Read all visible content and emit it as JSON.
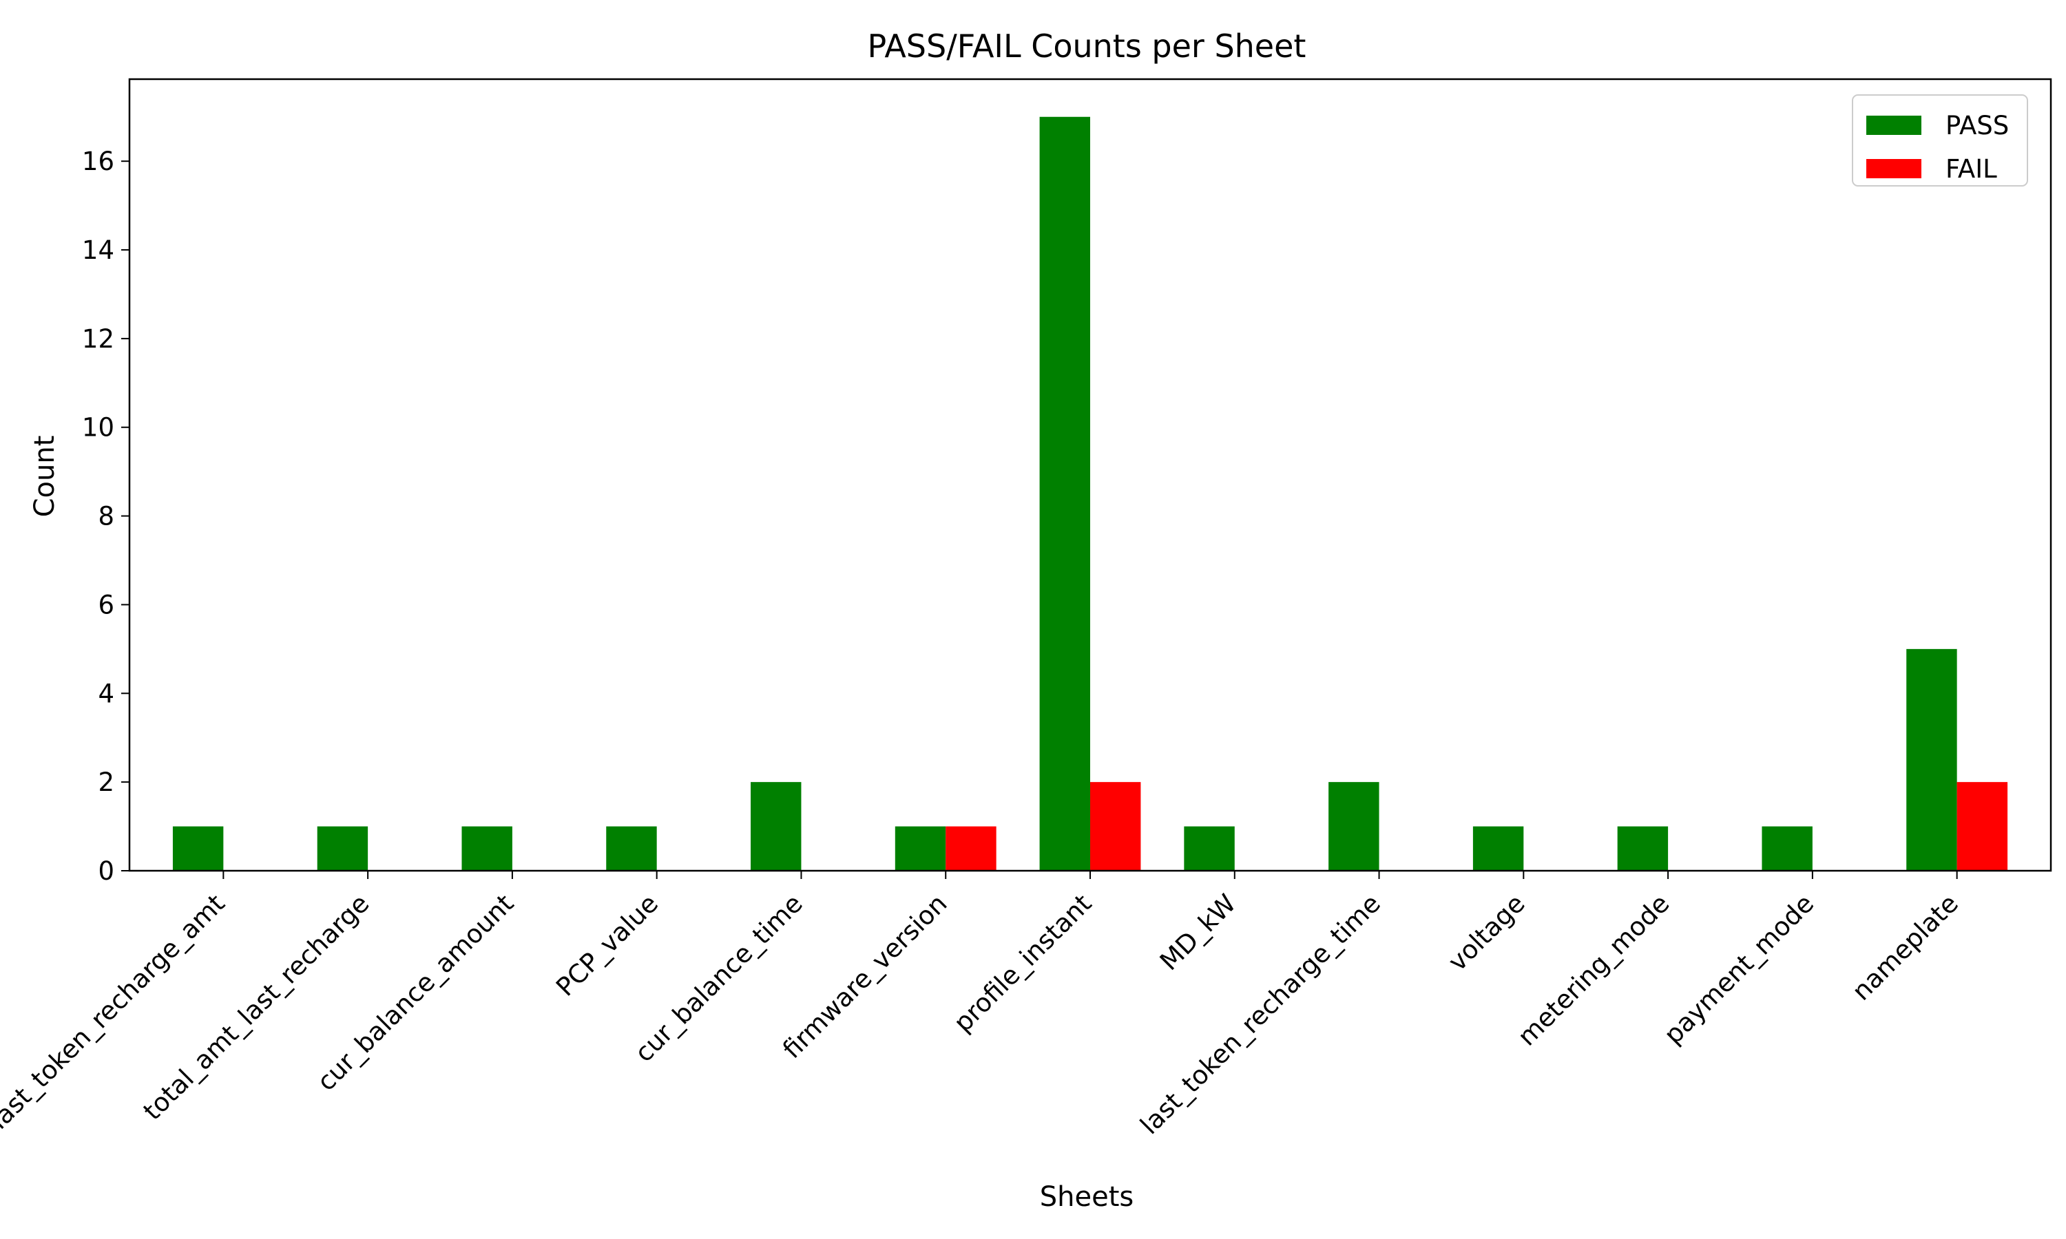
{
  "chart_data": {
    "type": "bar",
    "title": "PASS/FAIL Counts per Sheet",
    "xlabel": "Sheets",
    "ylabel": "Count",
    "categories": [
      "last_token_recharge_amt",
      "total_amt_last_recharge",
      "cur_balance_amount",
      "PCP_value",
      "cur_balance_time",
      "firmware_version",
      "profile_instant",
      "MD_kW",
      "last_token_recharge_time",
      "voltage",
      "metering_mode",
      "payment_mode",
      "nameplate"
    ],
    "series": [
      {
        "name": "PASS",
        "color": "#008000",
        "values": [
          1,
          1,
          1,
          1,
          2,
          1,
          17,
          1,
          2,
          1,
          1,
          1,
          5
        ]
      },
      {
        "name": "FAIL",
        "color": "#ff0000",
        "values": [
          0,
          0,
          0,
          0,
          0,
          1,
          2,
          0,
          0,
          0,
          0,
          0,
          2
        ]
      }
    ],
    "ylim": [
      0,
      17.85
    ],
    "yticks": [
      0,
      2,
      4,
      6,
      8,
      10,
      12,
      14,
      16
    ],
    "grid": false,
    "legend_position": "upper right"
  }
}
